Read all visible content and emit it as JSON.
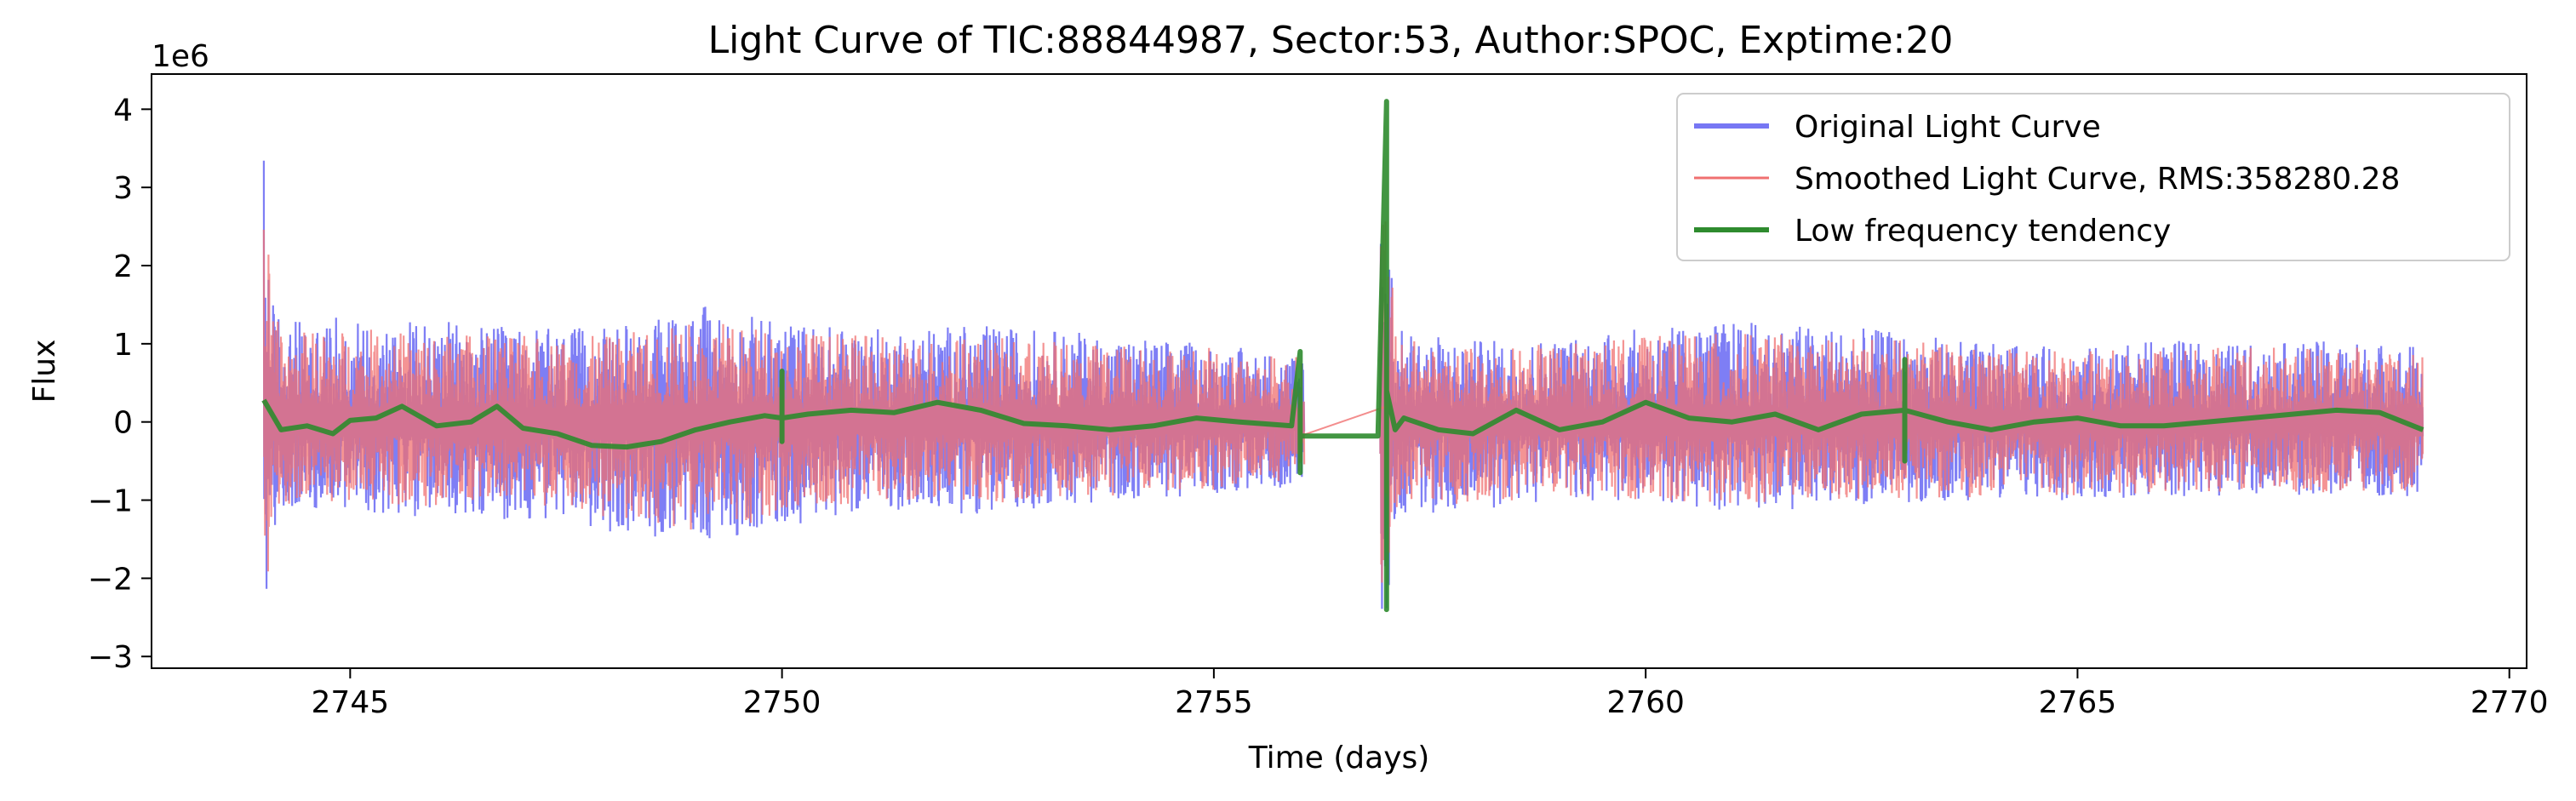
{
  "chart_data": {
    "type": "line",
    "title": "Light Curve of TIC:88844987, Sector:53, Author:SPOC, Exptime:20",
    "xlabel": "Time (days)",
    "ylabel": "Flux",
    "y_scale_note": "1e6",
    "xlim": [
      2742.7,
      2770.2
    ],
    "ylim": [
      -3150000,
      4450000
    ],
    "x_ticks": [
      2745,
      2750,
      2755,
      2760,
      2765,
      2770
    ],
    "y_ticks": [
      -3000000,
      -2000000,
      -1000000,
      0,
      1000000,
      2000000,
      3000000,
      4000000
    ],
    "y_tick_labels": [
      "−3",
      "−2",
      "−1",
      "0",
      "1",
      "2",
      "3",
      "4"
    ],
    "grid": false,
    "legend_position": "upper right",
    "gap": [
      2757.0,
      2757.0
    ],
    "series": [
      {
        "name": "Original Light Curve",
        "color": "#7777f4",
        "envelope": {
          "x": [
            2744.0,
            2744.1,
            2744.3,
            2745.0,
            2746.0,
            2747.0,
            2748.0,
            2749.0,
            2750.0,
            2751.0,
            2752.0,
            2753.0,
            2754.0,
            2755.0,
            2755.8,
            2756.0,
            2757.0,
            2757.1,
            2758.0,
            2759.0,
            2760.0,
            2761.0,
            2762.0,
            2763.0,
            2764.0,
            2765.0,
            2766.0,
            2767.0,
            2768.0,
            2769.0
          ],
          "upper": [
            3650000,
            1600000,
            1300000,
            1350000,
            1300000,
            1200000,
            1200000,
            1500000,
            1300000,
            1200000,
            1250000,
            1200000,
            1100000,
            1000000,
            900000,
            900000,
            3450000,
            1200000,
            1050000,
            1100000,
            1200000,
            1300000,
            1250000,
            1150000,
            1000000,
            950000,
            1050000,
            1000000,
            1050000,
            1000000
          ],
          "lower": [
            -2550000,
            -1450000,
            -1100000,
            -1150000,
            -1250000,
            -1250000,
            -1400000,
            -1550000,
            -1350000,
            -1100000,
            -1200000,
            -1100000,
            -1000000,
            -950000,
            -850000,
            -700000,
            -2550000,
            -1200000,
            -1150000,
            -1000000,
            -1050000,
            -1150000,
            -1100000,
            -1050000,
            -1000000,
            -1000000,
            -950000,
            -950000,
            -950000,
            -950000
          ]
        }
      },
      {
        "name": "Smoothed Light Curve, RMS:358280.28",
        "color": "#f07070",
        "envelope": {
          "x": [
            2744.0,
            2744.1,
            2744.3,
            2745.0,
            2746.0,
            2747.0,
            2748.0,
            2749.0,
            2750.0,
            2751.0,
            2752.0,
            2753.0,
            2754.0,
            2755.0,
            2755.8,
            2756.0,
            2757.0,
            2757.1,
            2758.0,
            2759.0,
            2760.0,
            2761.0,
            2762.0,
            2763.0,
            2764.0,
            2765.0,
            2766.0,
            2767.0,
            2768.0,
            2769.0
          ],
          "upper": [
            3300000,
            1350000,
            1150000,
            1200000,
            1150000,
            1100000,
            1100000,
            1300000,
            1200000,
            1100000,
            1100000,
            1050000,
            1000000,
            950000,
            850000,
            850000,
            3200000,
            1100000,
            950000,
            1000000,
            1100000,
            1150000,
            1100000,
            1050000,
            950000,
            900000,
            950000,
            950000,
            950000,
            950000
          ],
          "lower": [
            -2750000,
            -1350000,
            -1050000,
            -1050000,
            -1100000,
            -1100000,
            -1250000,
            -1400000,
            -1250000,
            -1000000,
            -1100000,
            -1000000,
            -950000,
            -900000,
            -800000,
            -650000,
            -2300000,
            -1100000,
            -1050000,
            -950000,
            -1000000,
            -1050000,
            -1050000,
            -1000000,
            -950000,
            -950000,
            -900000,
            -900000,
            -900000,
            -900000
          ]
        }
      },
      {
        "name": "Low frequency tendency",
        "color": "#2e8b2e",
        "x": [
          2744.0,
          2744.2,
          2744.5,
          2744.8,
          2745.0,
          2745.3,
          2745.6,
          2746.0,
          2746.4,
          2746.7,
          2747.0,
          2747.4,
          2747.8,
          2748.2,
          2748.6,
          2749.0,
          2749.4,
          2749.8,
          2750.0,
          2750.0,
          2750.0,
          2750.0,
          2750.3,
          2750.8,
          2751.3,
          2751.8,
          2752.3,
          2752.8,
          2753.3,
          2753.8,
          2754.3,
          2754.8,
          2755.3,
          2755.9,
          2756.0,
          2756.0,
          2756.0,
          2756.1,
          2756.9,
          2757.0,
          2757.0,
          2757.0,
          2757.1,
          2757.2,
          2757.6,
          2758.0,
          2758.5,
          2759.0,
          2759.5,
          2760.0,
          2760.5,
          2761.0,
          2761.5,
          2762.0,
          2762.5,
          2763.0,
          2763.0,
          2763.0,
          2763.0,
          2763.5,
          2764.0,
          2764.5,
          2765.0,
          2765.5,
          2766.0,
          2766.5,
          2767.0,
          2767.5,
          2768.0,
          2768.5,
          2769.0
        ],
        "y": [
          280000,
          -100000,
          -50000,
          -150000,
          20000,
          50000,
          200000,
          -50000,
          0,
          200000,
          -80000,
          -150000,
          -300000,
          -320000,
          -250000,
          -100000,
          0,
          80000,
          50000,
          650000,
          -250000,
          50000,
          100000,
          150000,
          120000,
          250000,
          150000,
          -20000,
          -50000,
          -100000,
          -50000,
          50000,
          0,
          -50000,
          900000,
          -650000,
          -180000,
          -180000,
          -180000,
          4100000,
          -2400000,
          400000,
          -100000,
          50000,
          -100000,
          -150000,
          150000,
          -100000,
          0,
          250000,
          50000,
          0,
          100000,
          -100000,
          100000,
          150000,
          800000,
          -500000,
          150000,
          0,
          -100000,
          0,
          50000,
          -50000,
          -50000,
          0,
          50000,
          100000,
          150000,
          120000,
          -100000
        ]
      }
    ]
  }
}
